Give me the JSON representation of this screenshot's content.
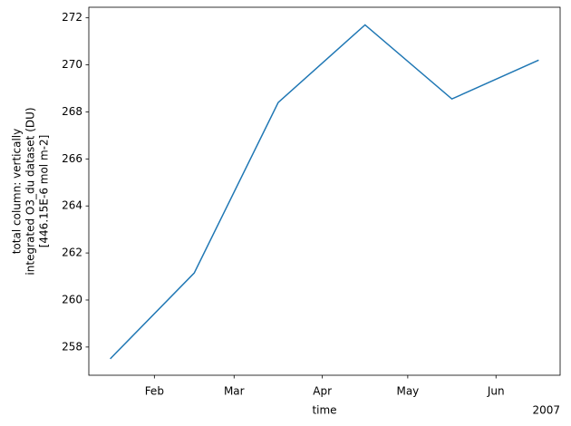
{
  "chart_data": {
    "type": "line",
    "x": [
      "2007-01",
      "2007-02",
      "2007-03",
      "2007-04",
      "2007-05",
      "2007-06"
    ],
    "series": [
      {
        "name": "total column: vertically integrated O3_du dataset (DU)",
        "color": "#1f77b4",
        "values": [
          257.5,
          261.15,
          268.4,
          271.7,
          268.55,
          270.2
        ]
      }
    ],
    "xlabel": "time",
    "x_offset_label": "2007",
    "ylabel": [
      "total column: vertically",
      "integrated O3_du dataset (DU)",
      "[446.15E-6 mol m-2]"
    ],
    "xticks": [
      {
        "value": "2007-02",
        "label": "Feb"
      },
      {
        "value": "2007-03",
        "label": "Mar"
      },
      {
        "value": "2007-04",
        "label": "Apr"
      },
      {
        "value": "2007-05",
        "label": "May"
      },
      {
        "value": "2007-06",
        "label": "Jun"
      }
    ],
    "ylim": [
      256.8,
      272.45
    ],
    "yticks": [
      258,
      260,
      262,
      264,
      266,
      268,
      270,
      272
    ],
    "grid": false
  }
}
